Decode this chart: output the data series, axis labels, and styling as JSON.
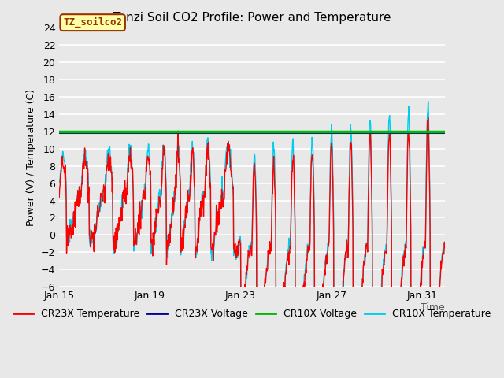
{
  "title": "Tonzi Soil CO2 Profile: Power and Temperature",
  "ylabel": "Power (V) / Temperature (C)",
  "xlabel": "Time",
  "ylim": [
    -6,
    24
  ],
  "yticks": [
    -6,
    -4,
    -2,
    0,
    2,
    4,
    6,
    8,
    10,
    12,
    14,
    16,
    18,
    20,
    22,
    24
  ],
  "xtick_labels": [
    "Jan 15",
    "Jan 19",
    "Jan 23",
    "Jan 27",
    "Jan 31"
  ],
  "xtick_days": [
    0,
    4,
    8,
    12,
    16
  ],
  "xlim": [
    0,
    17
  ],
  "cr10x_voltage_value": 12.0,
  "cr23x_voltage_value": 11.8,
  "bg_color": "#e8e8e8",
  "plot_bg_color": "#e8e8e8",
  "grid_color": "#ffffff",
  "cr23x_temp_color": "#ff0000",
  "cr23x_volt_color": "#000099",
  "cr10x_volt_color": "#00bb00",
  "cr10x_temp_color": "#00ccee",
  "label_box_bg": "#ffffaa",
  "label_box_edge": "#993300",
  "label_text": "TZ_soilco2",
  "label_text_color": "#993300",
  "title_fontsize": 11,
  "axis_label_fontsize": 9,
  "tick_fontsize": 9,
  "legend_fontsize": 9
}
